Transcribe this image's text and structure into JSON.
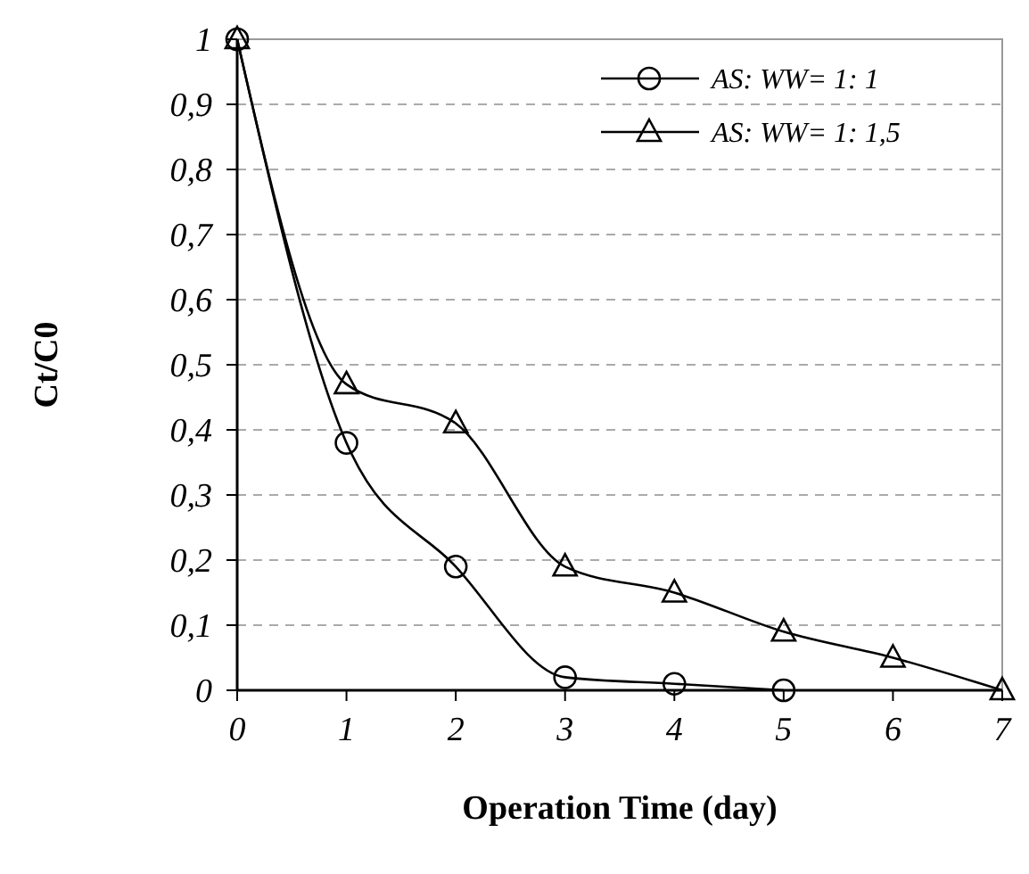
{
  "chart_data": {
    "type": "line",
    "xlabel": "Operation Time (day)",
    "ylabel": "Ct/C0",
    "xlim": [
      0,
      7
    ],
    "xticks": [
      0,
      1,
      2,
      3,
      4,
      5,
      6,
      7
    ],
    "ylim": [
      0,
      1
    ],
    "yticks": [
      0,
      {
        "value": 0.1,
        "label": "0,1"
      },
      {
        "value": 0.2,
        "label": "0,2"
      },
      {
        "value": 0.3,
        "label": "0,3"
      },
      {
        "value": 0.4,
        "label": "0,4"
      },
      {
        "value": 0.5,
        "label": "0,5"
      },
      {
        "value": 0.6,
        "label": "0,6"
      },
      {
        "value": 0.7,
        "label": "0,7"
      },
      {
        "value": 0.8,
        "label": "0,8"
      },
      {
        "value": 0.9,
        "label": "0,9"
      },
      1
    ],
    "grid": "y",
    "legend": "top right",
    "line_style": "solid",
    "series": [
      {
        "name": "AS: WW= 1: 1",
        "color": "#000000",
        "marker": "circle",
        "x": [
          0,
          1,
          2,
          3,
          4,
          5
        ],
        "values": [
          1,
          0.38,
          0.19,
          0.02,
          0.01,
          0
        ]
      },
      {
        "name": "AS: WW= 1: 1,5",
        "color": "#000000",
        "marker": "triangle",
        "x": [
          0,
          1,
          2,
          3,
          4,
          5,
          6,
          7
        ],
        "values": [
          1,
          0.47,
          0.41,
          0.19,
          0.15,
          0.09,
          0.05,
          0
        ]
      }
    ]
  }
}
